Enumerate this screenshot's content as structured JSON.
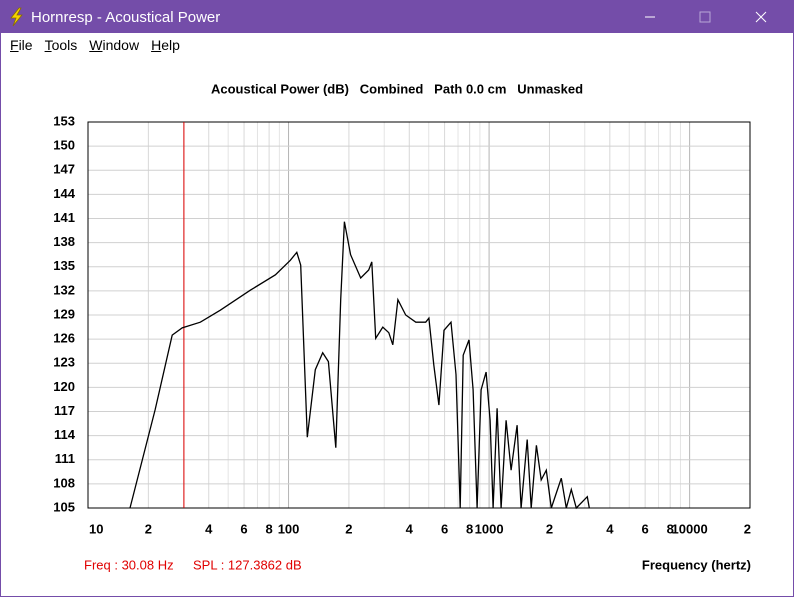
{
  "window": {
    "title": "Hornresp - Acoustical Power"
  },
  "menu": [
    "File",
    "Tools",
    "Window",
    "Help"
  ],
  "status": {
    "freq": "Freq : 30.08 Hz",
    "spl": "SPL : 127.3862 dB"
  },
  "chart_data": {
    "type": "line",
    "title": "Acoustical Power (dB)   Combined   Path 0.0 cm   Unmasked",
    "x_label": "Frequency (hertz)",
    "log_x": true,
    "grid": true,
    "xlim": [
      10,
      20000
    ],
    "ylim": [
      105,
      153
    ],
    "xticks": [
      10,
      {
        "value": 20,
        "label": "2"
      },
      {
        "value": 40,
        "label": "4"
      },
      {
        "value": 60,
        "label": "6"
      },
      {
        "value": 80,
        "label": "8"
      },
      100,
      {
        "value": 200,
        "label": "2"
      },
      {
        "value": 400,
        "label": "4"
      },
      {
        "value": 600,
        "label": "6"
      },
      {
        "value": 800,
        "label": "8"
      },
      1000,
      {
        "value": 2000,
        "label": "2"
      },
      {
        "value": 4000,
        "label": "4"
      },
      {
        "value": 6000,
        "label": "6"
      },
      {
        "value": 8000,
        "label": "8"
      },
      10000,
      {
        "value": 20000,
        "label": "2"
      }
    ],
    "x_minor_ticks": [
      30,
      50,
      70,
      90,
      300,
      500,
      700,
      900,
      3000,
      5000,
      7000,
      9000
    ],
    "yticks": [
      105,
      108,
      111,
      114,
      117,
      120,
      123,
      126,
      129,
      132,
      135,
      138,
      141,
      144,
      147,
      150,
      153
    ],
    "cursor_freq": 30.08,
    "cursor_color": "#e00000",
    "series": [
      {
        "color": "#000000",
        "x": [
          16.2,
          21.6,
          26.3,
          29.5,
          36.3,
          45.7,
          64.6,
          86,
          102,
          110,
          115,
          124,
          136,
          148,
          158,
          172,
          182,
          190,
          204,
          229,
          251,
          260,
          272,
          295,
          316,
          331,
          351,
          384,
          431,
          483,
          501,
          530,
          562,
          596,
          646,
          684,
          718,
          743,
          794,
          832,
          871,
          912,
          966,
          1012,
          1047,
          1096,
          1148,
          1216,
          1288,
          1380,
          1445,
          1549,
          1622,
          1722,
          1820,
          1928,
          2042,
          2291,
          2427,
          2570,
          2723,
          3090,
          3160
        ],
        "values": [
          105,
          117.2,
          126.5,
          127.4,
          128.1,
          129.6,
          132.1,
          134,
          135.8,
          136.8,
          135.2,
          113.8,
          122.2,
          124.3,
          123.2,
          112.5,
          130.9,
          140.6,
          136.5,
          133.6,
          134.6,
          135.6,
          126.1,
          127.5,
          126.8,
          125.3,
          130.9,
          129,
          128.1,
          128.1,
          128.6,
          122.8,
          117.8,
          127.1,
          128.1,
          121.6,
          105,
          124,
          125.9,
          119.7,
          105,
          119.7,
          121.9,
          115.9,
          105,
          117.4,
          105,
          115.9,
          109.7,
          115.3,
          105,
          113.5,
          105,
          112.8,
          108.5,
          109.7,
          105,
          108.7,
          105,
          107.3,
          105,
          106.4,
          105
        ]
      }
    ]
  }
}
